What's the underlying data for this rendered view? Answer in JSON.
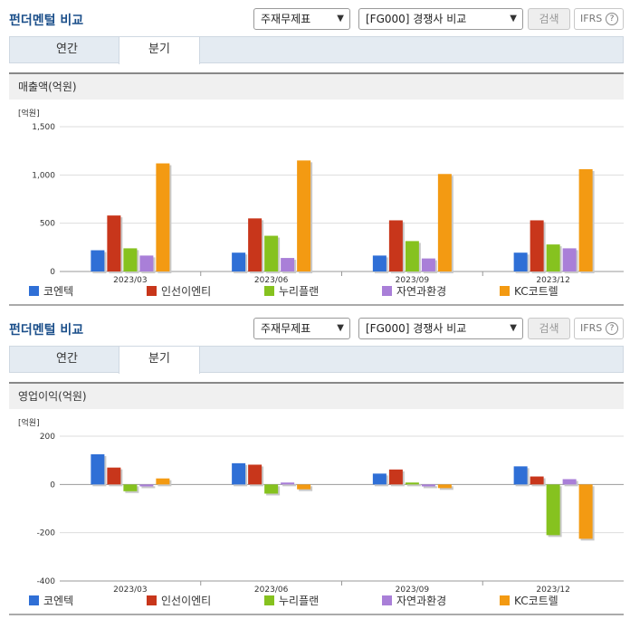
{
  "sections": [
    {
      "title": "펀더멘털 비교",
      "select1": "주재무제표",
      "select2": "[FG000] 경쟁사 비교",
      "search_label": "검색",
      "ifrs_label": "IFRS",
      "tabs": [
        "연간",
        "분기"
      ],
      "active_tab": 1,
      "panel_title": "매출액(억원)"
    },
    {
      "title": "펀더멘털 비교",
      "select1": "주재무제표",
      "select2": "[FG000] 경쟁사 비교",
      "search_label": "검색",
      "ifrs_label": "IFRS",
      "tabs": [
        "연간",
        "분기"
      ],
      "active_tab": 1,
      "panel_title": "영업이익(억원)"
    }
  ],
  "legend": [
    {
      "name": "코엔텍",
      "color": "#2f6fd6"
    },
    {
      "name": "인선이엔티",
      "color": "#c8361b"
    },
    {
      "name": "누리플랜",
      "color": "#86c21f"
    },
    {
      "name": "자연과환경",
      "color": "#a97fd8"
    },
    {
      "name": "KC코트렐",
      "color": "#f39a12"
    }
  ],
  "chart_data": [
    {
      "type": "bar",
      "unit_label": "[억원]",
      "categories": [
        "2023/03",
        "2023/06",
        "2023/09",
        "2023/12"
      ],
      "ylim": [
        0,
        1500
      ],
      "yticks": [
        0,
        500,
        1000,
        1500
      ],
      "ytick_labels": [
        "0",
        "500",
        "1,000",
        "1,500"
      ],
      "series": [
        {
          "name": "코엔텍",
          "values": [
            220,
            195,
            165,
            195
          ]
        },
        {
          "name": "인선이엔티",
          "values": [
            580,
            550,
            530,
            530
          ]
        },
        {
          "name": "누리플랜",
          "values": [
            240,
            370,
            315,
            280
          ]
        },
        {
          "name": "자연과환경",
          "values": [
            165,
            140,
            135,
            240
          ]
        },
        {
          "name": "KC코트렐",
          "values": [
            1120,
            1150,
            1010,
            1060
          ]
        }
      ]
    },
    {
      "type": "bar",
      "unit_label": "[억원]",
      "categories": [
        "2023/03",
        "2023/06",
        "2023/09",
        "2023/12"
      ],
      "ylim": [
        -400,
        200
      ],
      "yticks": [
        -400,
        -200,
        0,
        200
      ],
      "ytick_labels": [
        "-400",
        "-200",
        "0",
        "200"
      ],
      "series": [
        {
          "name": "코엔텍",
          "values": [
            125,
            88,
            45,
            75
          ]
        },
        {
          "name": "인선이엔티",
          "values": [
            70,
            82,
            62,
            33
          ]
        },
        {
          "name": "누리플랜",
          "values": [
            -28,
            -38,
            8,
            -210
          ]
        },
        {
          "name": "자연과환경",
          "values": [
            -8,
            8,
            -8,
            22
          ]
        },
        {
          "name": "KC코트렐",
          "values": [
            25,
            -20,
            -15,
            -225
          ]
        }
      ]
    }
  ]
}
